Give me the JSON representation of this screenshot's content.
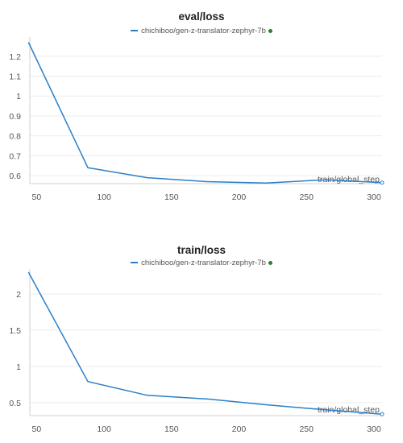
{
  "colors": {
    "line": "#2a7fc9",
    "dot": "#2e7d32",
    "grid": "#ececec",
    "axis": "#d0d0d0"
  },
  "chart_data": [
    {
      "type": "line",
      "title": "eval/loss",
      "xlabel": "train/global_step",
      "ylabel": "",
      "xlim": [
        45,
        306
      ],
      "ylim": [
        0.56,
        1.28
      ],
      "xticks": [
        50,
        100,
        150,
        200,
        250,
        300
      ],
      "yticks": [
        0.6,
        0.7,
        0.8,
        0.9,
        1,
        1.1,
        1.2
      ],
      "ytick_labels": [
        "0.6",
        "0.7",
        "0.8",
        "0.9",
        "1",
        "1.1",
        "1.2"
      ],
      "grid": true,
      "legend_position": "top-center",
      "series": [
        {
          "name": "chichiboo/gen-z-translator-zephyr-7b",
          "x": [
            44,
            88,
            132,
            176,
            220,
            264,
            306
          ],
          "y": [
            1.27,
            0.64,
            0.59,
            0.57,
            0.563,
            0.58,
            0.565
          ]
        }
      ]
    },
    {
      "type": "line",
      "title": "train/loss",
      "xlabel": "train/global_step",
      "ylabel": "",
      "xlim": [
        45,
        306
      ],
      "ylim": [
        0.32,
        2.3
      ],
      "xticks": [
        50,
        100,
        150,
        200,
        250,
        300
      ],
      "yticks": [
        0.5,
        1,
        1.5,
        2
      ],
      "ytick_labels": [
        "0.5",
        "1",
        "1.5",
        "2"
      ],
      "grid": true,
      "legend_position": "top-center",
      "series": [
        {
          "name": "chichiboo/gen-z-translator-zephyr-7b",
          "x": [
            44,
            88,
            132,
            176,
            220,
            264,
            306
          ],
          "y": [
            2.3,
            0.79,
            0.6,
            0.55,
            0.47,
            0.4,
            0.34
          ]
        }
      ]
    }
  ]
}
